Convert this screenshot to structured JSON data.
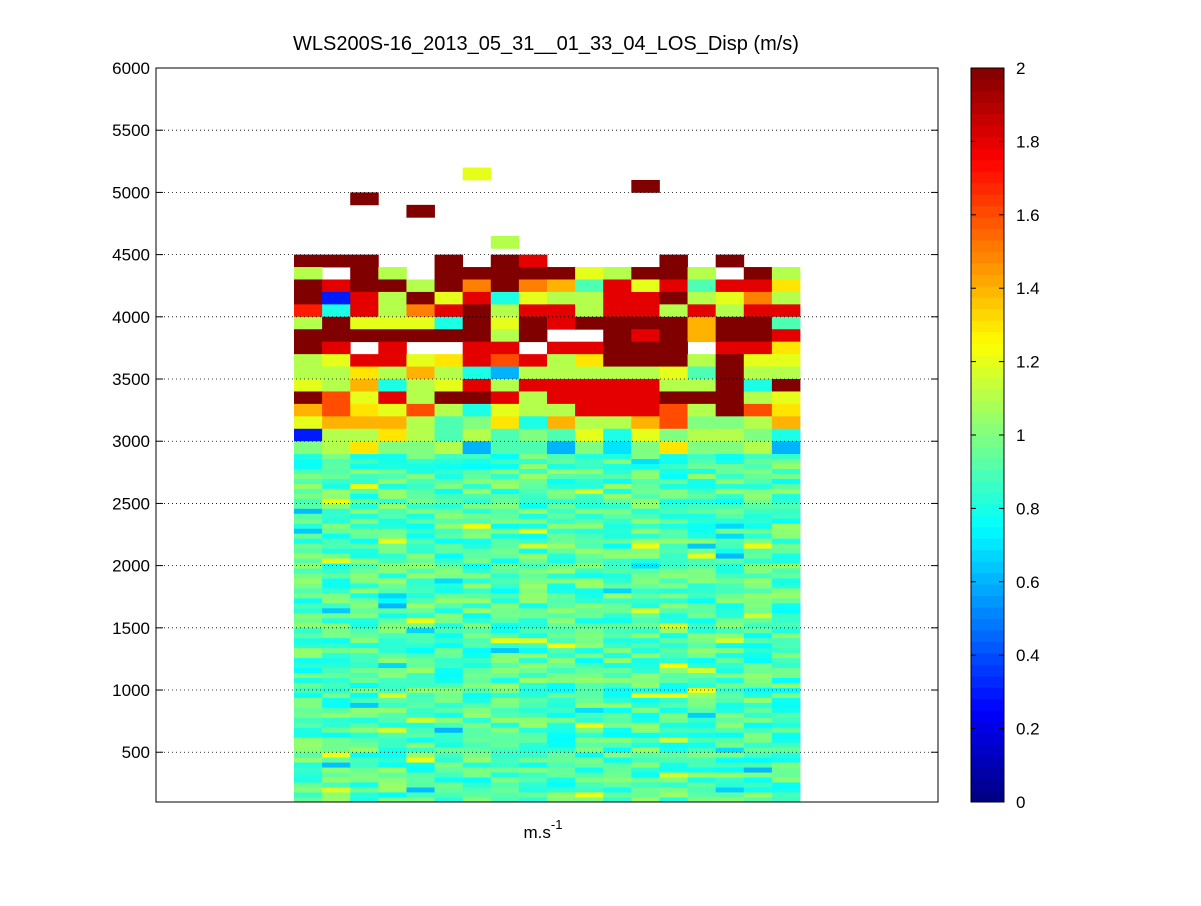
{
  "chart_data": {
    "type": "heatmap",
    "title": "WLS200S-16_2013_05_31__01_33_04_LOS_Disp (m/s)",
    "xlabel": "m.s",
    "xlabel_superscript": "-1",
    "ylabel": "",
    "ylim": [
      100,
      6000
    ],
    "yticks": [
      "500",
      "1000",
      "1500",
      "2000",
      "2500",
      "3000",
      "3500",
      "4000",
      "4500",
      "5000",
      "5500",
      "6000"
    ],
    "grid": "y-dotted",
    "colormap": "jet",
    "clim": [
      0,
      2
    ],
    "colorbar": {
      "ticks": [
        "0",
        "0.2",
        "0.4",
        "0.6",
        "0.8",
        "1",
        "1.2",
        "1.4",
        "1.6",
        "1.8",
        "2"
      ]
    },
    "column_count": 18,
    "description_note_levels": {
      "upper_band_meters": [
        3000,
        4500
      ],
      "noise_band_meters": [
        100,
        3000
      ]
    },
    "isolated_cells": [
      {
        "column": 2,
        "altitude": 4950,
        "value": 2.0
      },
      {
        "column": 4,
        "altitude": 4850,
        "value": 2.0
      },
      {
        "column": 6,
        "altitude": 5150,
        "value": 1.2
      },
      {
        "column": 12,
        "altitude": 5050,
        "value": 2.0
      },
      {
        "column": 7,
        "altitude": 4600,
        "value": 1.1
      }
    ],
    "upper_rows": [
      {
        "altitude": 4450,
        "values": [
          2.0,
          2.0,
          2.0,
          null,
          null,
          2.0,
          null,
          2.0,
          1.8,
          null,
          null,
          null,
          null,
          2.0,
          null,
          2.0,
          null,
          null
        ]
      },
      {
        "altitude": 4350,
        "values": [
          1.1,
          null,
          2.0,
          1.1,
          null,
          2.0,
          2.0,
          2.0,
          2.0,
          2.0,
          1.2,
          1.1,
          2.0,
          2.0,
          1.1,
          null,
          2.0,
          1.1
        ]
      },
      {
        "altitude": 4250,
        "values": [
          2.0,
          1.8,
          2.0,
          2.0,
          1.1,
          2.0,
          1.5,
          2.0,
          1.5,
          1.4,
          0.9,
          1.8,
          1.2,
          1.8,
          0.9,
          1.8,
          1.8,
          1.3
        ]
      },
      {
        "altitude": 4150,
        "values": [
          2.0,
          0.3,
          1.8,
          1.1,
          2.0,
          1.2,
          1.8,
          0.8,
          1.2,
          1.1,
          1.1,
          1.8,
          1.8,
          2.0,
          1.1,
          1.2,
          1.5,
          1.1
        ]
      },
      {
        "altitude": 4050,
        "values": [
          1.7,
          0.8,
          1.8,
          1.1,
          1.5,
          1.8,
          2.0,
          1.1,
          1.8,
          1.8,
          1.1,
          1.8,
          1.8,
          1.1,
          1.8,
          1.1,
          1.8,
          1.8
        ]
      },
      {
        "altitude": 3950,
        "values": [
          1.1,
          2.0,
          1.2,
          1.2,
          1.2,
          0.8,
          2.0,
          1.2,
          2.0,
          1.8,
          2.0,
          2.0,
          2.0,
          2.0,
          1.4,
          2.0,
          2.0,
          0.9
        ]
      },
      {
        "altitude": 3850,
        "values": [
          2.0,
          2.0,
          2.0,
          2.0,
          2.0,
          2.0,
          2.0,
          1.1,
          2.0,
          null,
          null,
          2.0,
          1.8,
          2.0,
          1.4,
          2.0,
          2.0,
          1.8
        ]
      },
      {
        "altitude": 3750,
        "values": [
          2.0,
          1.8,
          null,
          1.8,
          null,
          null,
          1.8,
          1.8,
          null,
          1.8,
          1.8,
          2.0,
          2.0,
          2.0,
          null,
          1.8,
          1.8,
          1.3
        ]
      },
      {
        "altitude": 3650,
        "values": [
          1.1,
          1.2,
          1.8,
          1.8,
          1.2,
          1.3,
          1.8,
          1.6,
          1.8,
          1.1,
          1.3,
          2.0,
          2.0,
          2.0,
          1.1,
          2.0,
          1.2,
          1.2
        ]
      },
      {
        "altitude": 3550,
        "values": [
          1.1,
          1.1,
          1.3,
          1.1,
          1.4,
          1.1,
          0.8,
          0.6,
          1.1,
          1.1,
          1.1,
          1.1,
          1.1,
          1.2,
          0.9,
          2.0,
          1.1,
          1.1
        ]
      },
      {
        "altitude": 3450,
        "values": [
          1.2,
          1.1,
          1.4,
          0.8,
          1.1,
          1.2,
          1.8,
          1.1,
          1.8,
          1.8,
          1.8,
          1.8,
          1.8,
          1.1,
          1.1,
          2.0,
          0.8,
          2.0
        ]
      },
      {
        "altitude": 3350,
        "values": [
          2.0,
          1.6,
          1.2,
          1.8,
          1.1,
          2.0,
          2.0,
          1.8,
          1.1,
          1.8,
          1.8,
          1.8,
          1.8,
          2.0,
          2.0,
          2.0,
          1.1,
          1.2
        ]
      },
      {
        "altitude": 3250,
        "values": [
          1.4,
          1.6,
          1.3,
          1.2,
          1.6,
          1.1,
          0.8,
          1.2,
          1.1,
          1.1,
          1.8,
          1.8,
          1.8,
          1.6,
          1.1,
          2.0,
          1.6,
          1.3
        ]
      },
      {
        "altitude": 3150,
        "values": [
          1.2,
          1.4,
          1.4,
          1.4,
          1.1,
          0.9,
          1.0,
          1.3,
          0.8,
          1.4,
          1.1,
          1.1,
          1.4,
          1.6,
          1.0,
          1.0,
          1.1,
          1.4
        ]
      },
      {
        "altitude": 3050,
        "values": [
          0.3,
          1.1,
          1.1,
          1.3,
          1.1,
          0.9,
          1.1,
          0.9,
          1.0,
          0.9,
          1.2,
          0.8,
          1.2,
          1.0,
          1.1,
          1.1,
          1.0,
          0.8
        ]
      },
      {
        "altitude": 2950,
        "values": [
          1.0,
          1.1,
          1.3,
          1.0,
          1.0,
          1.1,
          0.6,
          0.9,
          0.9,
          0.6,
          1.0,
          0.7,
          1.0,
          1.3,
          1.0,
          1.0,
          1.1,
          0.6
        ]
      }
    ],
    "lower_band": {
      "altitude_range": [
        100,
        2900
      ],
      "typical_value_range": [
        0.75,
        1.05
      ],
      "row_count": 70
    }
  }
}
